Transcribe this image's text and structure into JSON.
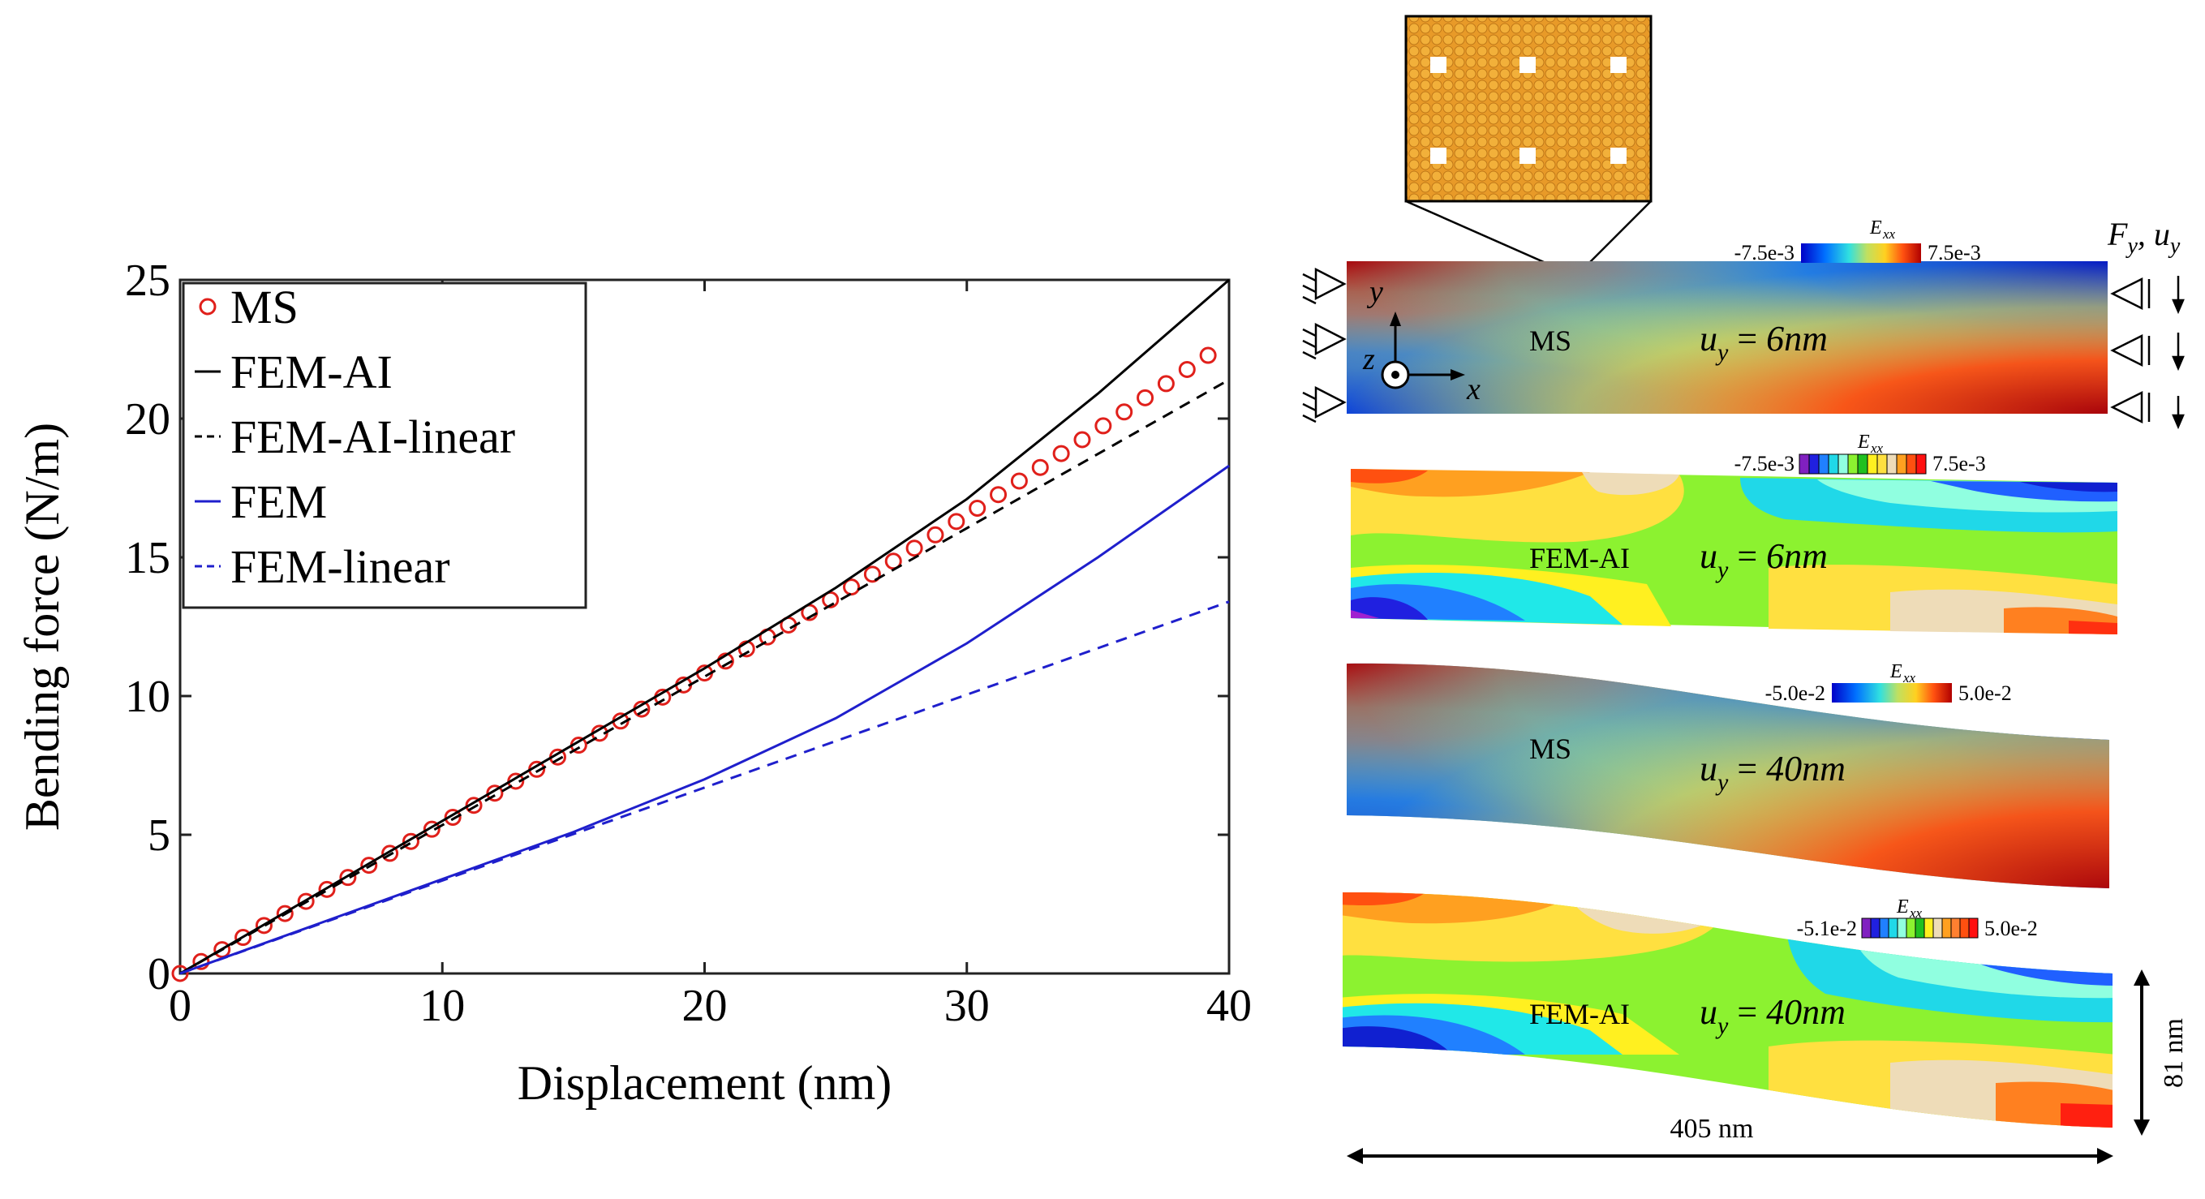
{
  "chart_data": {
    "type": "line",
    "title": "",
    "xlabel": "Displacement (nm)",
    "ylabel": "Bending force (N/m)",
    "xlim": [
      0,
      40
    ],
    "ylim": [
      0,
      25
    ],
    "xticks": [
      0,
      10,
      20,
      30,
      40
    ],
    "yticks": [
      0,
      5,
      10,
      15,
      20,
      25
    ],
    "grid": false,
    "legend_position": "top-left",
    "series": [
      {
        "name": "MS",
        "style": "markers",
        "color": "#e0201b",
        "x": [
          0,
          0.8,
          1.6,
          2.4,
          3.2,
          4.0,
          4.8,
          5.6,
          6.4,
          7.2,
          8.0,
          8.8,
          9.6,
          10.4,
          11.2,
          12.0,
          12.8,
          13.6,
          14.4,
          15.2,
          16.0,
          16.8,
          17.6,
          18.4,
          19.2,
          20.0,
          20.8,
          21.6,
          22.4,
          23.2,
          24.0,
          24.8,
          25.6,
          26.4,
          27.2,
          28.0,
          28.8,
          29.6,
          30.4,
          31.2,
          32.0,
          32.8,
          33.6,
          34.4,
          35.2,
          36.0,
          36.8,
          37.6,
          38.4,
          39.2
        ],
        "y": [
          0.0,
          0.43,
          0.86,
          1.3,
          1.73,
          2.16,
          2.6,
          3.03,
          3.46,
          3.9,
          4.33,
          4.76,
          5.2,
          5.63,
          6.06,
          6.5,
          6.93,
          7.36,
          7.8,
          8.23,
          8.66,
          9.1,
          9.53,
          9.96,
          10.4,
          10.83,
          11.26,
          11.7,
          12.13,
          12.56,
          13.01,
          13.47,
          13.93,
          14.39,
          14.86,
          15.33,
          15.81,
          16.29,
          16.77,
          17.26,
          17.75,
          18.24,
          18.74,
          19.24,
          19.74,
          20.24,
          20.75,
          21.26,
          21.77,
          22.28
        ]
      },
      {
        "name": "FEM-AI",
        "style": "solid",
        "color": "#000000",
        "x": [
          0,
          5,
          10,
          15,
          20,
          25,
          30,
          35,
          40
        ],
        "y": [
          0,
          2.75,
          5.5,
          8.25,
          11.0,
          13.9,
          17.1,
          20.9,
          25.0
        ]
      },
      {
        "name": "FEM-AI-linear",
        "style": "dashed",
        "color": "#000000",
        "x": [
          0,
          40
        ],
        "y": [
          0,
          21.4
        ]
      },
      {
        "name": "FEM",
        "style": "solid",
        "color": "#1f1fcc",
        "x": [
          0,
          5,
          10,
          15,
          20,
          25,
          30,
          35,
          40
        ],
        "y": [
          0,
          1.7,
          3.4,
          5.1,
          7.0,
          9.2,
          11.9,
          15.0,
          18.3
        ]
      },
      {
        "name": "FEM-linear",
        "style": "dashed",
        "color": "#1f1fcc",
        "x": [
          0,
          40
        ],
        "y": [
          0,
          13.4
        ]
      }
    ]
  },
  "legend": {
    "ms": "MS",
    "fem_ai": "FEM-AI",
    "fem_ai_linear": "FEM-AI-linear",
    "fem": "FEM",
    "fem_linear": "FEM-linear"
  },
  "panels": {
    "load_label": "F",
    "load_sub1": "y",
    "load_comma": ", u",
    "load_sub2": "y",
    "axis_y": "y",
    "axis_z": "z",
    "axis_x": "x",
    "p1": {
      "model": "MS",
      "disp": "6nm",
      "cb_label": "E",
      "cb_sub": "xx",
      "cb_min": "-7.5e-3",
      "cb_max": "7.5e-3"
    },
    "p2": {
      "model": "FEM-AI",
      "disp": "6nm",
      "cb_label": "E",
      "cb_sub": "xx",
      "cb_min": "-7.5e-3",
      "cb_max": "7.5e-3"
    },
    "p3": {
      "model": "MS",
      "disp": "40nm",
      "cb_label": "E",
      "cb_sub": "xx",
      "cb_min": "-5.0e-2",
      "cb_max": "5.0e-2"
    },
    "p4": {
      "model": "FEM-AI",
      "disp": "40nm",
      "cb_label": "E",
      "cb_sub": "xx",
      "cb_min": "-5.1e-2",
      "cb_max": "5.0e-2"
    },
    "u_sym": "u",
    "u_sub": "y",
    "eq": " = ",
    "width_label": "405 nm",
    "height_label": "81 nm"
  }
}
